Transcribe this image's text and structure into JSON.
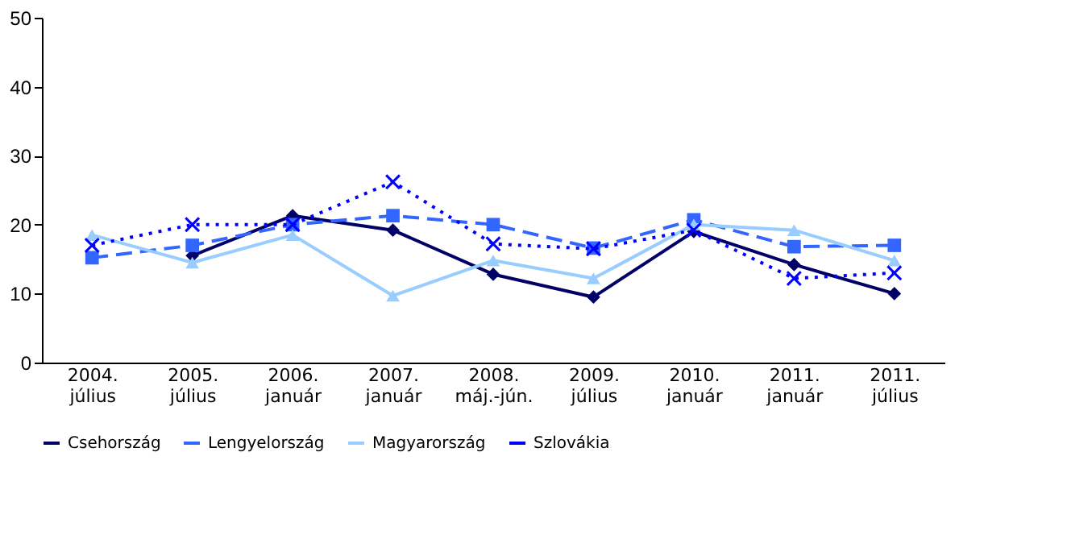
{
  "chart_data": {
    "type": "line",
    "categories": [
      "2004. július",
      "2005. július",
      "2006. január",
      "2007. január",
      "2008. máj.-jún.",
      "2009. július",
      "2010. január",
      "2011. január",
      "2011. július"
    ],
    "series": [
      {
        "name": "Csehország",
        "color": "#000066",
        "marker": "diamond",
        "line_style": "solid",
        "values": [
          null,
          15.5,
          21.3,
          19.2,
          12.8,
          9.5,
          19,
          14.2,
          10
        ]
      },
      {
        "name": "Lengyelország",
        "color": "#3366ff",
        "marker": "square",
        "line_style": "dashed",
        "values": [
          15.2,
          17,
          20,
          21.3,
          20,
          16.6,
          20.7,
          16.8,
          17
        ]
      },
      {
        "name": "Magyarország",
        "color": "#99ccff",
        "marker": "triangle",
        "line_style": "solid",
        "values": [
          18.5,
          14.5,
          18.5,
          9.7,
          14.8,
          12.2,
          20,
          19.2,
          14.8
        ]
      },
      {
        "name": "Szlovákia",
        "color": "#0000ff",
        "marker": "cross",
        "line_style": "dotted",
        "values": [
          17,
          20,
          20,
          26.2,
          17.2,
          16.5,
          19.2,
          12.2,
          13
        ]
      }
    ],
    "ylim": [
      0,
      50
    ],
    "yticks": [
      0,
      10,
      20,
      30,
      40,
      50
    ],
    "grid": false,
    "legend": "bottom"
  }
}
